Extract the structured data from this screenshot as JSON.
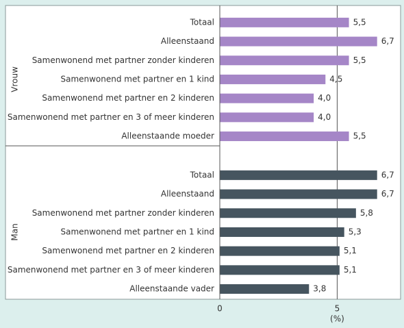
{
  "chart_data": {
    "type": "bar",
    "orientation": "horizontal",
    "xlabel": "(%)",
    "xlim": [
      0,
      7.7
    ],
    "xticks": [
      0,
      5
    ],
    "grid": true,
    "series": [
      {
        "name": "Vrouw",
        "color": "#a586c7",
        "categories": [
          "Totaal",
          "Alleenstaand",
          "Samenwonend met partner zonder kinderen",
          "Samenwonend met partner en 1 kind",
          "Samenwonend met partner en 2 kinderen",
          "Samenwonend met partner en 3 of meer kinderen",
          "Alleenstaande moeder"
        ],
        "values": [
          5.5,
          6.7,
          5.5,
          4.5,
          4.0,
          4.0,
          5.5
        ],
        "value_labels": [
          "5,5",
          "6,7",
          "5,5",
          "4,5",
          "4,0",
          "4,0",
          "5,5"
        ]
      },
      {
        "name": "Man",
        "color": "#46555f",
        "categories": [
          "Totaal",
          "Alleenstaand",
          "Samenwonend met partner zonder kinderen",
          "Samenwonend met partner en 1 kind",
          "Samenwonend met partner en 2 kinderen",
          "Samenwonend met partner en 3 of meer kinderen",
          "Alleenstaande vader"
        ],
        "values": [
          6.7,
          6.7,
          5.8,
          5.3,
          5.1,
          5.1,
          3.8
        ],
        "value_labels": [
          "6,7",
          "6,7",
          "5,8",
          "5,3",
          "5,1",
          "5,1",
          "3,8"
        ]
      }
    ]
  }
}
